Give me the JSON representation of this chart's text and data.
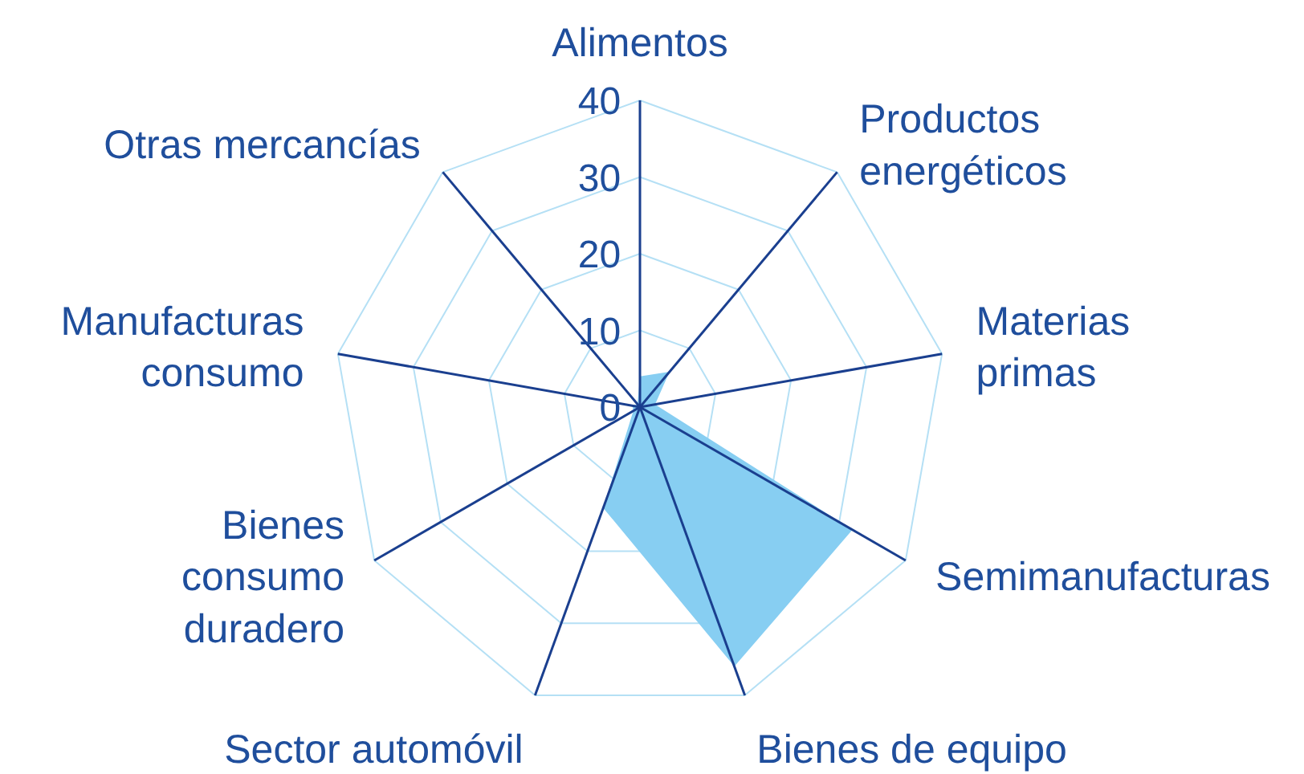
{
  "chart_data": {
    "type": "radar",
    "categories": [
      "Alimentos",
      "Productos\nenergéticos",
      "Materias\nprimas",
      "Semimanufacturas",
      "Bienes de equipo",
      "Sector automóvil",
      "Bienes\nconsumo\nduradero",
      "Manufacturas\nconsumo",
      "Otras mercancías"
    ],
    "series": [
      {
        "color": "#87cef2",
        "values": [
          4,
          6,
          2,
          32,
          36,
          14,
          1,
          1,
          0.5
        ]
      }
    ],
    "ylim": [
      0,
      40
    ],
    "yticks": [
      0,
      10,
      20,
      30,
      40
    ]
  }
}
